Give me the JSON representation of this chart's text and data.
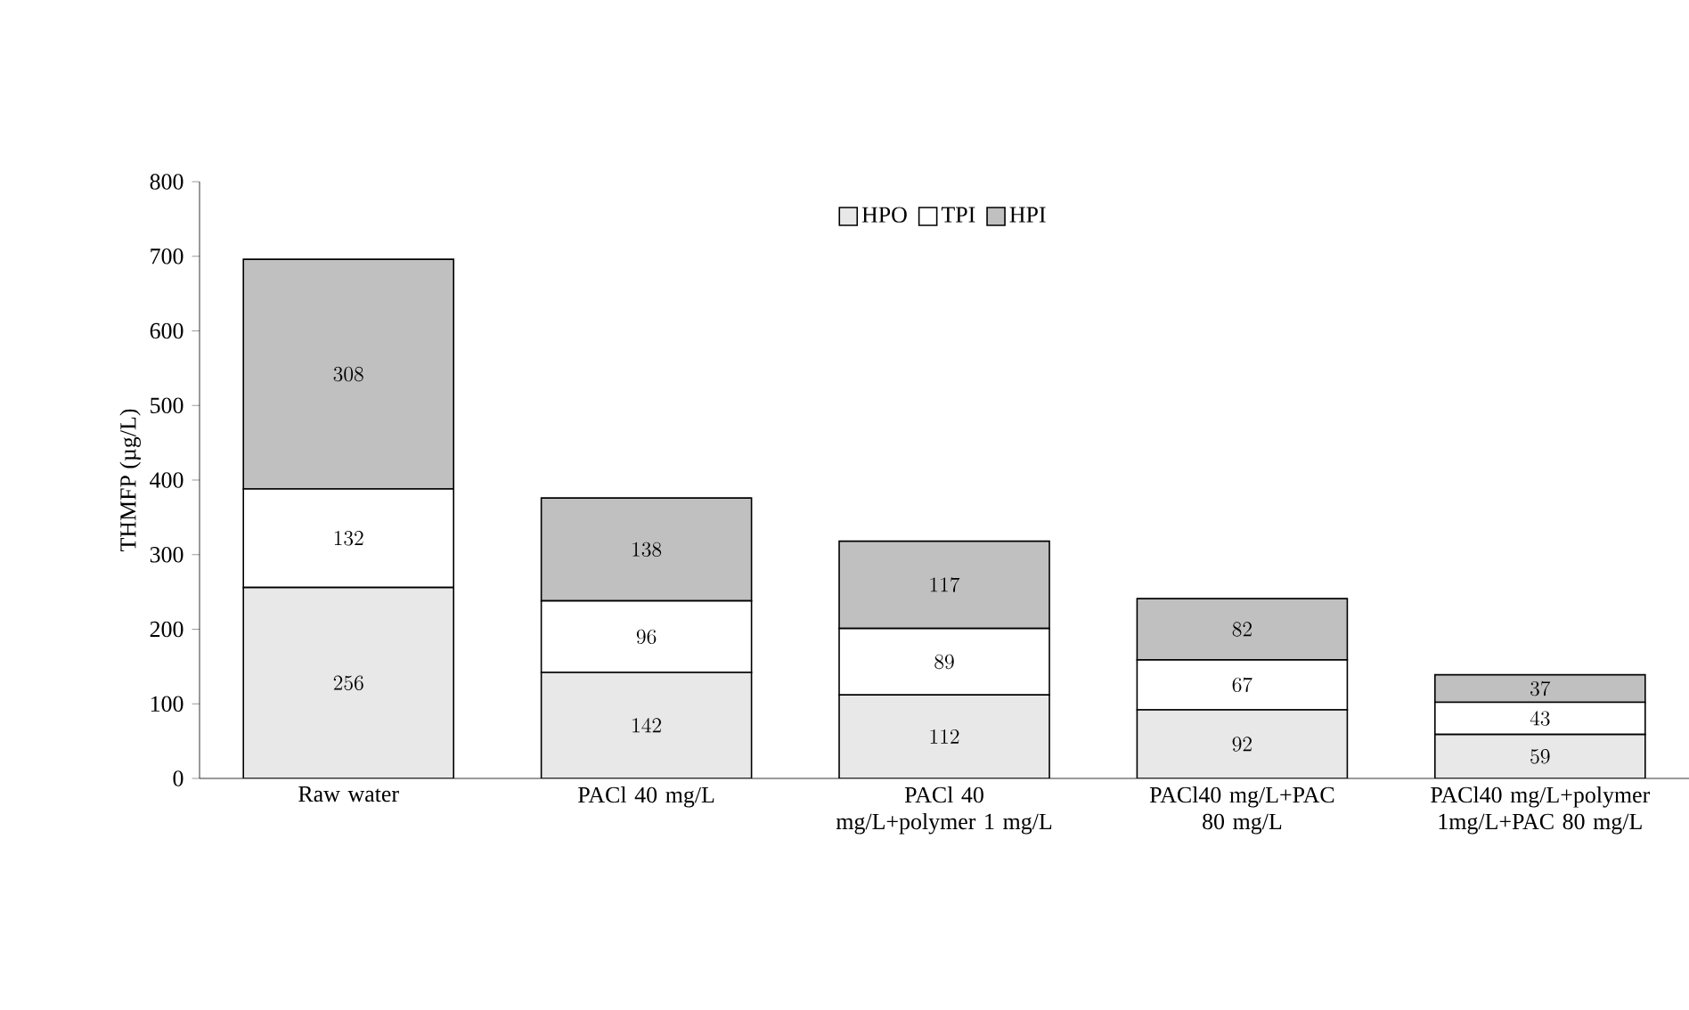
{
  "chart_data": {
    "type": "bar",
    "stacked": true,
    "ylabel": "THMFP (µg/L)",
    "categories": [
      "Raw water",
      "PACl 40 mg/L",
      "PACl 40 mg/L+polymer 1 mg/L",
      "PACl40 mg/L+PAC 80 mg/L",
      "PACl40 mg/L+polymer 1mg/L+PAC 80 mg/L"
    ],
    "series": [
      {
        "name": "HPO",
        "color": "#e8e8e8",
        "values": [
          256,
          142,
          112,
          92,
          59
        ]
      },
      {
        "name": "TPI",
        "color": "#ffffff",
        "values": [
          132,
          96,
          89,
          67,
          43
        ]
      },
      {
        "name": "HPI",
        "color": "#c0c0c0",
        "values": [
          308,
          138,
          117,
          82,
          37
        ]
      }
    ],
    "ylim": [
      0,
      800
    ],
    "yticks": [
      0,
      100,
      200,
      300,
      400,
      500,
      600,
      700,
      800
    ],
    "data_labels": true,
    "legend": "top",
    "grid": false
  }
}
